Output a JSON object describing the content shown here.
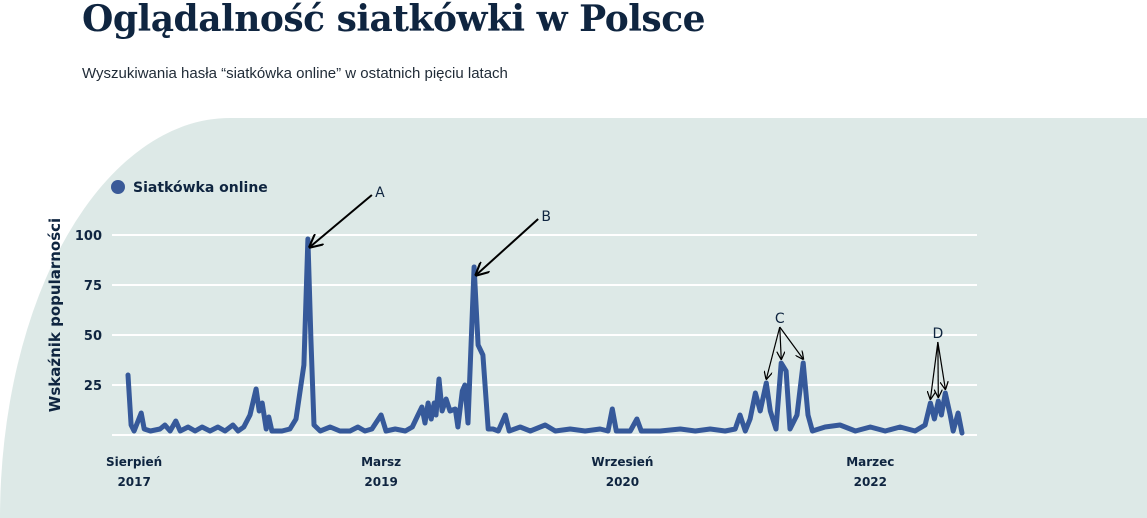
{
  "title": "Oglądalność siatkówki w Polsce",
  "subtitle": "Wyszukiwania hasła “siatkówka online” w ostatnich pięciu latach",
  "colors": {
    "line": "#36599a",
    "background_panel": "#dde9e7",
    "title": "#0f2540",
    "grid": "#ffffff"
  },
  "chart_data": {
    "type": "line",
    "ylabel": "Wskaźnik popularności",
    "xlabel": "",
    "ylim": [
      0,
      100
    ],
    "yticks": [
      "100",
      "75",
      "50",
      "25"
    ],
    "ytick_values": [
      100,
      75,
      50,
      25
    ],
    "grid": "horizontal",
    "legend_position": "top-left",
    "xticks": [
      {
        "month": "Sierpień",
        "year": "2017",
        "date": "2017-08-15"
      },
      {
        "month": "Marsz",
        "year": "2019",
        "date": "2019-03-01"
      },
      {
        "month": "Wrzesień",
        "year": "2020",
        "date": "2020-09-01"
      },
      {
        "month": "Marzec",
        "year": "2022",
        "date": "2022-03-20"
      }
    ],
    "series": [
      {
        "name": "Siatkówka online",
        "points": [
          [
            "2017-08-01",
            30
          ],
          [
            "2017-08-08",
            5
          ],
          [
            "2017-08-15",
            2
          ],
          [
            "2017-08-31",
            11
          ],
          [
            "2017-09-07",
            3
          ],
          [
            "2017-09-21",
            2
          ],
          [
            "2017-10-13",
            3
          ],
          [
            "2017-10-24",
            5
          ],
          [
            "2017-11-05",
            2
          ],
          [
            "2017-11-18",
            7
          ],
          [
            "2017-11-28",
            2
          ],
          [
            "2017-12-16",
            4
          ],
          [
            "2018-01-01",
            2
          ],
          [
            "2018-01-17",
            4
          ],
          [
            "2018-02-04",
            2
          ],
          [
            "2018-02-22",
            4
          ],
          [
            "2018-03-10",
            2
          ],
          [
            "2018-03-28",
            5
          ],
          [
            "2018-04-09",
            2
          ],
          [
            "2018-04-22",
            4
          ],
          [
            "2018-05-06",
            10
          ],
          [
            "2018-05-20",
            23
          ],
          [
            "2018-05-27",
            12
          ],
          [
            "2018-06-03",
            16
          ],
          [
            "2018-06-12",
            3
          ],
          [
            "2018-06-18",
            9
          ],
          [
            "2018-06-25",
            2
          ],
          [
            "2018-07-18",
            2
          ],
          [
            "2018-08-05",
            3
          ],
          [
            "2018-08-19",
            8
          ],
          [
            "2018-09-06",
            35
          ],
          [
            "2018-09-15",
            98
          ],
          [
            "2018-09-22",
            48
          ],
          [
            "2018-09-29",
            5
          ],
          [
            "2018-10-13",
            2
          ],
          [
            "2018-11-05",
            4
          ],
          [
            "2018-11-27",
            2
          ],
          [
            "2018-12-20",
            2
          ],
          [
            "2019-01-07",
            4
          ],
          [
            "2019-01-23",
            2
          ],
          [
            "2019-02-08",
            3
          ],
          [
            "2019-03-01",
            10
          ],
          [
            "2019-03-12",
            2
          ],
          [
            "2019-04-02",
            3
          ],
          [
            "2019-04-25",
            2
          ],
          [
            "2019-05-11",
            4
          ],
          [
            "2019-05-24",
            10
          ],
          [
            "2019-06-02",
            14
          ],
          [
            "2019-06-09",
            6
          ],
          [
            "2019-06-16",
            16
          ],
          [
            "2019-06-23",
            8
          ],
          [
            "2019-06-30",
            16
          ],
          [
            "2019-07-04",
            10
          ],
          [
            "2019-07-11",
            28
          ],
          [
            "2019-07-18",
            12
          ],
          [
            "2019-07-27",
            18
          ],
          [
            "2019-08-05",
            12
          ],
          [
            "2019-08-17",
            13
          ],
          [
            "2019-08-23",
            4
          ],
          [
            "2019-09-02",
            22
          ],
          [
            "2019-09-08",
            25
          ],
          [
            "2019-09-15",
            6
          ],
          [
            "2019-09-29",
            84
          ],
          [
            "2019-10-08",
            45
          ],
          [
            "2019-10-19",
            40
          ],
          [
            "2019-10-31",
            3
          ],
          [
            "2019-11-11",
            3
          ],
          [
            "2019-11-23",
            2
          ],
          [
            "2019-12-09",
            10
          ],
          [
            "2019-12-18",
            2
          ],
          [
            "2020-01-12",
            4
          ],
          [
            "2020-02-04",
            2
          ],
          [
            "2020-03-09",
            5
          ],
          [
            "2020-04-01",
            2
          ],
          [
            "2020-05-05",
            3
          ],
          [
            "2020-06-08",
            2
          ],
          [
            "2020-07-12",
            3
          ],
          [
            "2020-07-30",
            2
          ],
          [
            "2020-08-09",
            13
          ],
          [
            "2020-08-18",
            2
          ],
          [
            "2020-09-19",
            2
          ],
          [
            "2020-10-04",
            8
          ],
          [
            "2020-10-14",
            2
          ],
          [
            "2020-11-26",
            2
          ],
          [
            "2021-01-11",
            3
          ],
          [
            "2021-02-14",
            2
          ],
          [
            "2021-03-20",
            3
          ],
          [
            "2021-04-23",
            2
          ],
          [
            "2021-05-16",
            3
          ],
          [
            "2021-05-27",
            10
          ],
          [
            "2021-06-08",
            2
          ],
          [
            "2021-06-19",
            8
          ],
          [
            "2021-07-01",
            21
          ],
          [
            "2021-07-12",
            12
          ],
          [
            "2021-07-26",
            26
          ],
          [
            "2021-08-04",
            12
          ],
          [
            "2021-08-17",
            3
          ],
          [
            "2021-08-29",
            36
          ],
          [
            "2021-09-09",
            32
          ],
          [
            "2021-09-18",
            3
          ],
          [
            "2021-10-04",
            10
          ],
          [
            "2021-10-18",
            36
          ],
          [
            "2021-10-29",
            10
          ],
          [
            "2021-11-08",
            2
          ],
          [
            "2021-12-07",
            4
          ],
          [
            "2022-01-10",
            5
          ],
          [
            "2022-02-14",
            2
          ],
          [
            "2022-03-20",
            4
          ],
          [
            "2022-04-23",
            2
          ],
          [
            "2022-05-27",
            4
          ],
          [
            "2022-06-30",
            2
          ],
          [
            "2022-07-23",
            5
          ],
          [
            "2022-08-04",
            16
          ],
          [
            "2022-08-13",
            8
          ],
          [
            "2022-08-22",
            17
          ],
          [
            "2022-08-29",
            10
          ],
          [
            "2022-09-07",
            21
          ],
          [
            "2022-09-18",
            10
          ],
          [
            "2022-09-25",
            2
          ],
          [
            "2022-10-06",
            11
          ],
          [
            "2022-10-15",
            1
          ]
        ]
      }
    ],
    "annotations": [
      {
        "label": "A",
        "targets": [
          "2018-09-15"
        ]
      },
      {
        "label": "B",
        "targets": [
          "2019-09-29"
        ]
      },
      {
        "label": "C",
        "targets": [
          "2021-07-26",
          "2021-08-29",
          "2021-10-18"
        ]
      },
      {
        "label": "D",
        "targets": [
          "2022-08-04",
          "2022-08-22",
          "2022-09-07"
        ]
      }
    ]
  }
}
